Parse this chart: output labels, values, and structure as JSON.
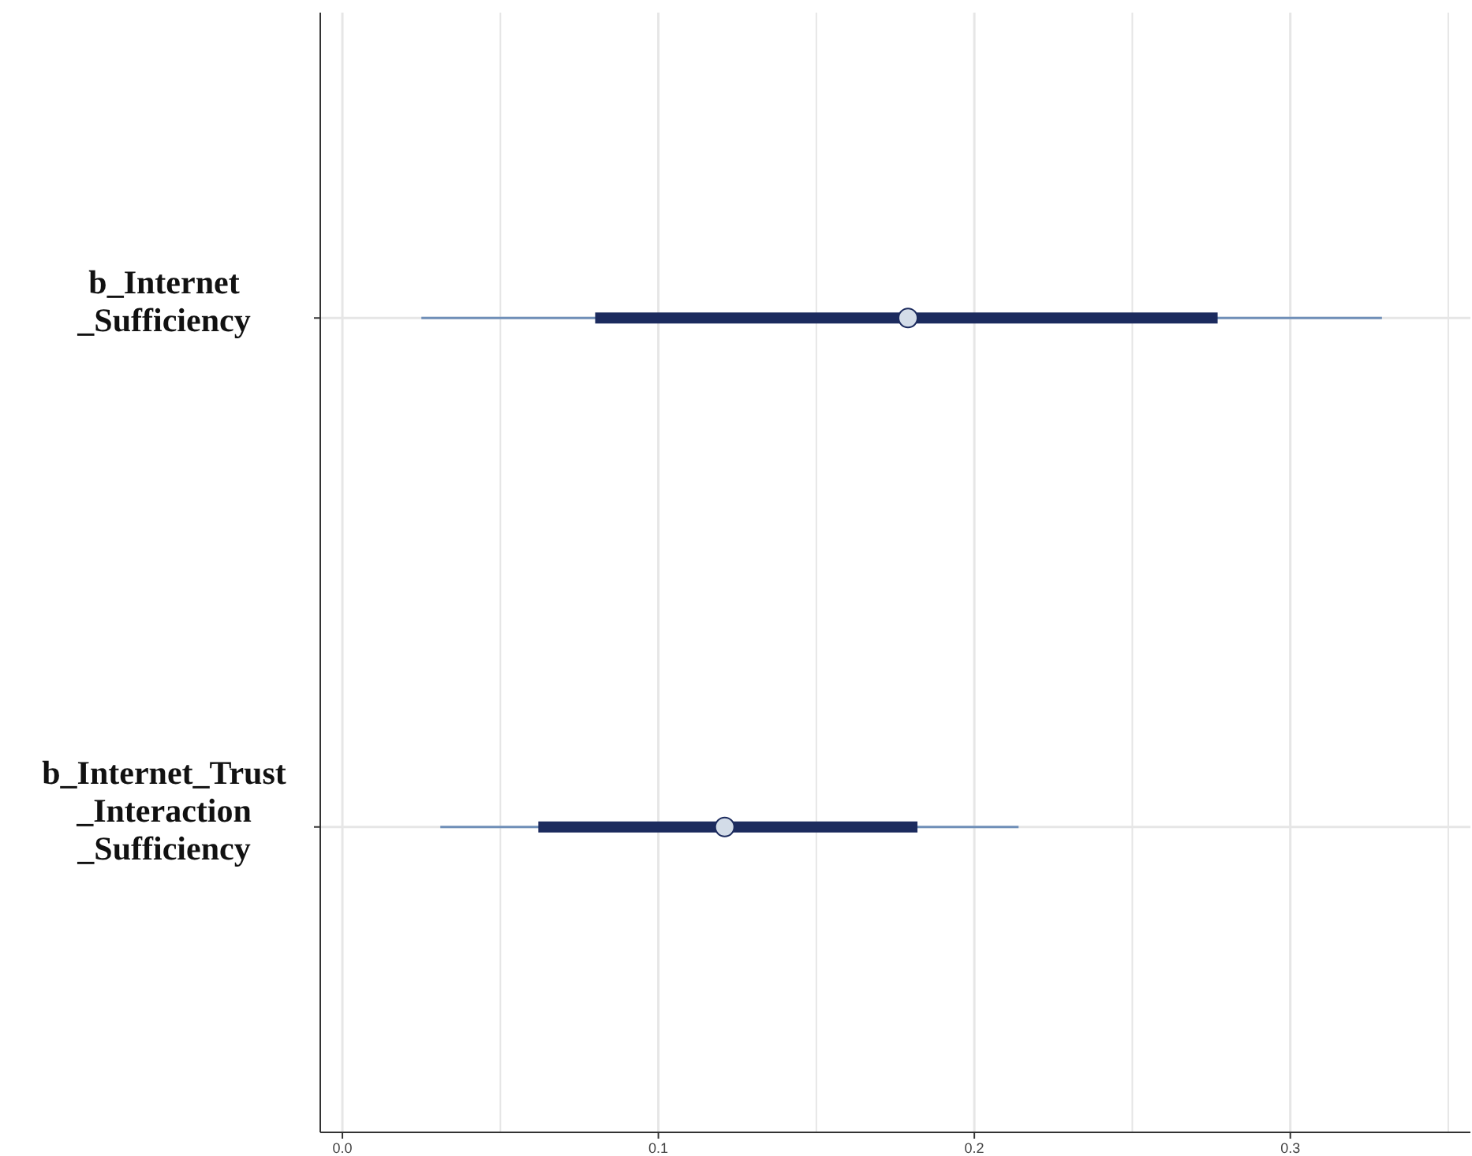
{
  "chart_data": {
    "type": "box",
    "orientation": "horizontal",
    "categories": [
      "b_Internet\n_Sufficiency",
      "b_Internet_Trust\n_Interaction\n_Sufficiency"
    ],
    "boxes": [
      {
        "low": 0.025,
        "q1": 0.08,
        "median": 0.179,
        "q3": 0.277,
        "high": 0.329
      },
      {
        "low": 0.031,
        "q1": 0.062,
        "median": 0.121,
        "q3": 0.182,
        "high": 0.214
      }
    ],
    "color": "#1c2b5e",
    "xlim": [
      -0.007,
      0.357
    ],
    "xticks": [
      {
        "value": 0,
        "label": "0.0"
      },
      {
        "value": 0.05,
        "label": null
      },
      {
        "value": 0.1,
        "label": "0.1"
      },
      {
        "value": 0.15,
        "label": null
      },
      {
        "value": 0.2,
        "label": "0.2"
      },
      {
        "value": 0.25,
        "label": null
      },
      {
        "value": 0.3,
        "label": "0.3"
      },
      {
        "value": 0.35,
        "label": null
      }
    ],
    "grid": true
  }
}
